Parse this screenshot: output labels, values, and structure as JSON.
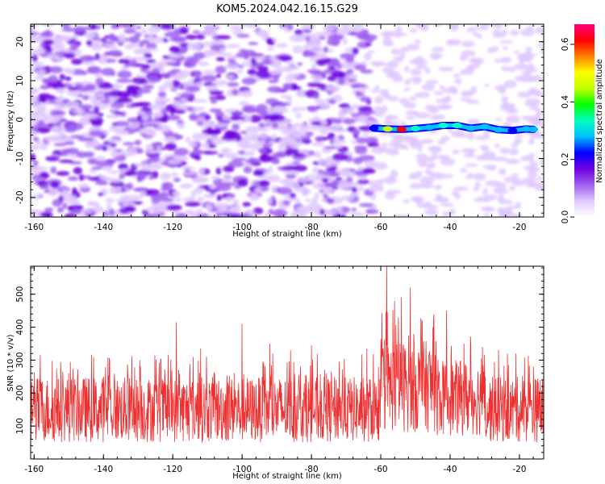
{
  "title": "KOM5.2024.042.16.15.G29",
  "chart_data": [
    {
      "type": "heatmap",
      "xlabel": "Height of straight line (km)",
      "ylabel": "Frequency (Hz)",
      "xlim": [
        -161,
        -13
      ],
      "ylim": [
        -25,
        24.5
      ],
      "xticks": [
        "-160",
        "-140",
        "-120",
        "-100",
        "-80",
        "-60",
        "-40",
        "-20"
      ],
      "xtick_values": [
        -160,
        -140,
        -120,
        -100,
        -80,
        -60,
        -40,
        -20
      ],
      "yticks": [
        "20",
        "10",
        "0",
        "-10",
        "-20"
      ],
      "ytick_values": [
        20,
        10,
        0,
        -10,
        -20
      ],
      "colorbar": {
        "label": "Normalized spectral amplitude",
        "range": [
          0,
          0.67
        ],
        "ticks": [
          "0.0",
          "0.2",
          "0.4",
          "0.6"
        ],
        "tick_values": [
          0,
          0.2,
          0.4,
          0.6
        ],
        "colors": [
          "#ffffff",
          "#e0c8ff",
          "#a060f0",
          "#7000e0",
          "#0000ff",
          "#00c0ff",
          "#00ffc0",
          "#00ff00",
          "#c0ff00",
          "#ffff00",
          "#ff8000",
          "#ff0000",
          "#ff0080"
        ]
      },
      "signal_trace": {
        "x": [
          -62,
          -58,
          -54,
          -50,
          -46,
          -42,
          -38,
          -34,
          -30,
          -26,
          -22,
          -18,
          -16
        ],
        "y": [
          -2.2,
          -2.4,
          -2.5,
          -2.3,
          -2.0,
          -1.5,
          -1.5,
          -2.2,
          -1.8,
          -2.6,
          -2.8,
          -2.4,
          -2.5
        ],
        "amplitude": [
          0.25,
          0.45,
          0.62,
          0.35,
          0.3,
          0.33,
          0.36,
          0.3,
          0.27,
          0.3,
          0.22,
          0.3,
          0.28
        ]
      },
      "background_amplitude": "noise 0.0-0.15 across full range, lower for x > -62 except trace"
    },
    {
      "type": "line",
      "xlabel": "Height of straight line (km)",
      "ylabel": "SNR (10 * v/v)",
      "xlim": [
        -161,
        -13
      ],
      "ylim": [
        0,
        585
      ],
      "xticks": [
        "-160",
        "-140",
        "-120",
        "-100",
        "-80",
        "-60",
        "-40",
        "-20"
      ],
      "xtick_values": [
        -160,
        -140,
        -120,
        -100,
        -80,
        -60,
        -40,
        -20
      ],
      "yticks": [
        "100",
        "200",
        "300",
        "400",
        "500"
      ],
      "ytick_values": [
        100,
        200,
        300,
        400,
        500
      ],
      "color": "#f03030",
      "baseline_band": [
        50,
        250
      ],
      "peaks": {
        "x": [
          -158,
          -150,
          -140,
          -133,
          -119,
          -112,
          -100,
          -92,
          -86,
          -80,
          -72,
          -64,
          -60,
          -58.3,
          -56,
          -54,
          -51.5,
          -48,
          -45,
          -41,
          -36,
          -31,
          -26,
          -21,
          -16,
          -14
        ],
        "y": [
          235,
          260,
          250,
          265,
          415,
          335,
          410,
          350,
          330,
          345,
          295,
          335,
          365,
          585,
          480,
          490,
          520,
          420,
          400,
          450,
          350,
          305,
          330,
          320,
          280,
          240
        ]
      }
    }
  ]
}
